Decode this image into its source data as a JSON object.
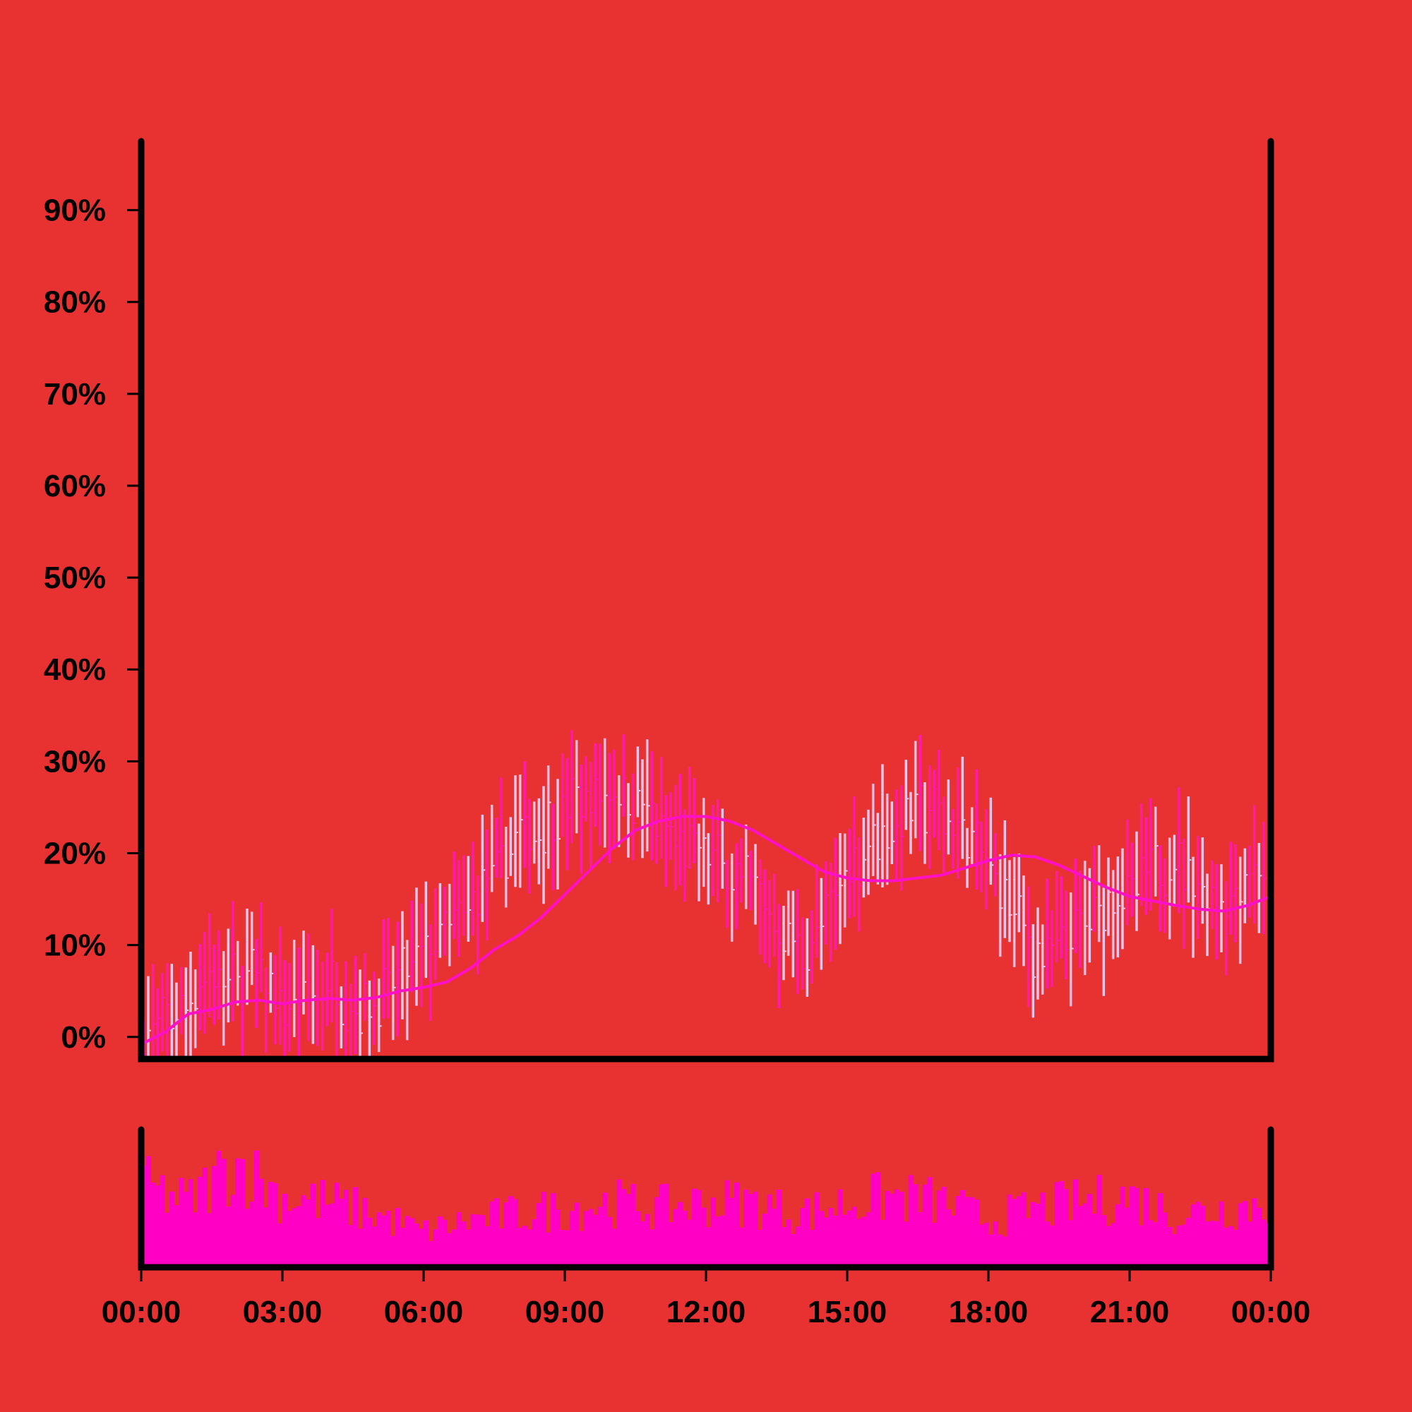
{
  "chart_data": {
    "type": "ohlc",
    "title": "",
    "xlabel": "",
    "ylabel": "",
    "x_ticks": [
      "00:00",
      "03:00",
      "06:00",
      "09:00",
      "12:00",
      "15:00",
      "18:00",
      "21:00",
      "00:00"
    ],
    "x_range_hours": [
      0,
      24
    ],
    "y_ticks": [
      "0%",
      "10%",
      "20%",
      "30%",
      "40%",
      "50%",
      "60%",
      "70%",
      "80%",
      "90%"
    ],
    "y_tick_values": [
      0,
      10,
      20,
      30,
      40,
      50,
      60,
      70,
      80,
      90
    ],
    "ylim": [
      -2.4,
      97.5
    ],
    "grid": false,
    "legend": "none",
    "bar_count": 240,
    "price_curve": [
      [
        0,
        0
      ],
      [
        0.5,
        1.5
      ],
      [
        1,
        4
      ],
      [
        1.5,
        7
      ],
      [
        2,
        6
      ],
      [
        2.5,
        7
      ],
      [
        3,
        3
      ],
      [
        3.5,
        4
      ],
      [
        4,
        6
      ],
      [
        4.5,
        3
      ],
      [
        5,
        4
      ],
      [
        5.5,
        6
      ],
      [
        6,
        9
      ],
      [
        6.5,
        12
      ],
      [
        7,
        14
      ],
      [
        7.5,
        18
      ],
      [
        8,
        22
      ],
      [
        8.5,
        23
      ],
      [
        9,
        25
      ],
      [
        9.5,
        26
      ],
      [
        10,
        27
      ],
      [
        10.5,
        26
      ],
      [
        11,
        23
      ],
      [
        11.5,
        21
      ],
      [
        12,
        20
      ],
      [
        12.5,
        18
      ],
      [
        13,
        16
      ],
      [
        13.5,
        12
      ],
      [
        14,
        9
      ],
      [
        14.5,
        12
      ],
      [
        15,
        18
      ],
      [
        15.5,
        21
      ],
      [
        16,
        23
      ],
      [
        16.5,
        25
      ],
      [
        17,
        24
      ],
      [
        17.5,
        22
      ],
      [
        18,
        19
      ],
      [
        18.5,
        14
      ],
      [
        19,
        9
      ],
      [
        19.5,
        10
      ],
      [
        20,
        12
      ],
      [
        20.5,
        14
      ],
      [
        21,
        16
      ],
      [
        21.5,
        18
      ],
      [
        22,
        19
      ],
      [
        22.5,
        16
      ],
      [
        23,
        15
      ],
      [
        23.5,
        18
      ],
      [
        24,
        19
      ]
    ],
    "moving_average": [
      [
        0,
        -0.8
      ],
      [
        0.5,
        0.5
      ],
      [
        1,
        2.5
      ],
      [
        1.5,
        3
      ],
      [
        2,
        3.8
      ],
      [
        2.5,
        4
      ],
      [
        3,
        3.6
      ],
      [
        3.5,
        4
      ],
      [
        4,
        4.2
      ],
      [
        4.5,
        4
      ],
      [
        5,
        4.3
      ],
      [
        5.5,
        5
      ],
      [
        6,
        5.4
      ],
      [
        6.5,
        6
      ],
      [
        7,
        7.5
      ],
      [
        7.5,
        9.5
      ],
      [
        8,
        11
      ],
      [
        8.5,
        13
      ],
      [
        9,
        15.5
      ],
      [
        9.5,
        18
      ],
      [
        10,
        20.5
      ],
      [
        10.5,
        22.5
      ],
      [
        11,
        23.5
      ],
      [
        11.5,
        24
      ],
      [
        12,
        24
      ],
      [
        12.5,
        23.5
      ],
      [
        13,
        22.5
      ],
      [
        13.5,
        21
      ],
      [
        14,
        19.5
      ],
      [
        14.5,
        18
      ],
      [
        15,
        17.3
      ],
      [
        15.5,
        17
      ],
      [
        16,
        17
      ],
      [
        16.5,
        17.3
      ],
      [
        17,
        17.6
      ],
      [
        17.5,
        18.4
      ],
      [
        18,
        19.2
      ],
      [
        18.5,
        19.8
      ],
      [
        19,
        19.6
      ],
      [
        19.5,
        18.7
      ],
      [
        20,
        17.5
      ],
      [
        20.5,
        16.3
      ],
      [
        21,
        15.3
      ],
      [
        21.5,
        14.8
      ],
      [
        22,
        14.3
      ],
      [
        22.5,
        13.9
      ],
      [
        23,
        13.7
      ],
      [
        23.5,
        14.3
      ],
      [
        24,
        15.3
      ]
    ],
    "volume_level": [
      [
        0,
        0.7
      ],
      [
        1,
        0.55
      ],
      [
        2,
        0.9
      ],
      [
        3,
        0.6
      ],
      [
        4,
        0.55
      ],
      [
        5,
        0.45
      ],
      [
        6,
        0.3
      ],
      [
        7,
        0.4
      ],
      [
        8,
        0.45
      ],
      [
        9,
        0.5
      ],
      [
        10,
        0.55
      ],
      [
        11,
        0.5
      ],
      [
        12,
        0.55
      ],
      [
        13,
        0.55
      ],
      [
        14,
        0.45
      ],
      [
        15,
        0.55
      ],
      [
        16,
        0.6
      ],
      [
        17,
        0.55
      ],
      [
        18,
        0.4
      ],
      [
        19,
        0.5
      ],
      [
        20,
        0.55
      ],
      [
        21,
        0.6
      ],
      [
        22,
        0.45
      ],
      [
        23,
        0.5
      ],
      [
        24,
        0.55
      ]
    ],
    "colors": {
      "background": "#e83232",
      "axis": "#000000",
      "bar_up": "#ff1aa8",
      "bar_down": "#e6c3e8",
      "moving_average": "#ff10c8",
      "volume": "#ff00c4"
    }
  }
}
